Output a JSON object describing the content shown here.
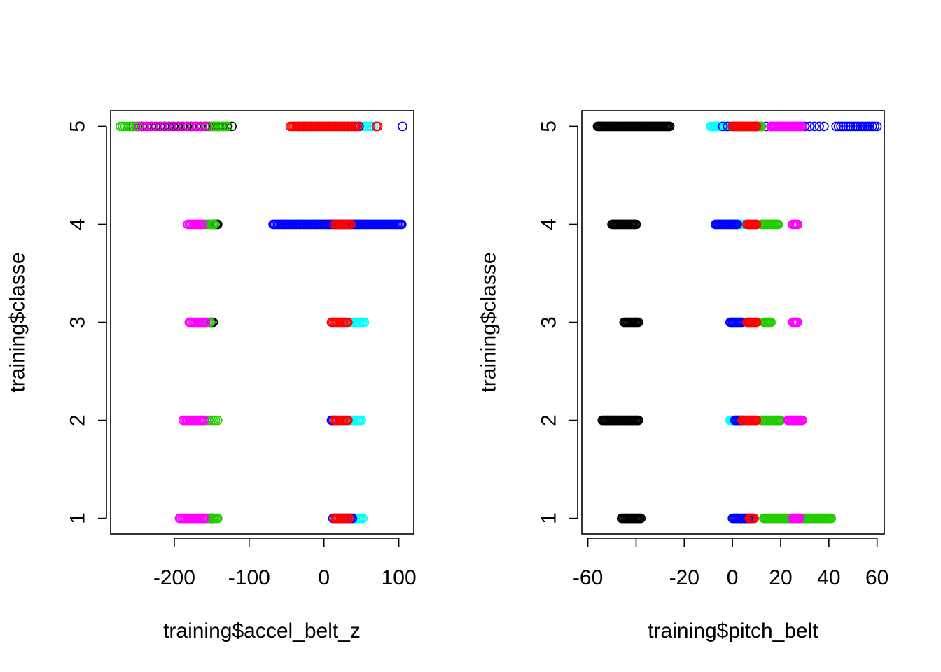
{
  "chart_data": [
    {
      "type": "scatter",
      "xlabel": "training$accel_belt_z",
      "ylabel": "training$classe",
      "xlim": [
        -285,
        120
      ],
      "ylim": [
        0.84,
        5.16
      ],
      "xticks": [
        -200,
        -100,
        0,
        100
      ],
      "xtick_labels": [
        "-200",
        "-100",
        "0",
        "100"
      ],
      "yticks": [
        1,
        2,
        3,
        4,
        5
      ],
      "ytick_labels": [
        "1",
        "2",
        "3",
        "4",
        "5"
      ],
      "grid": false,
      "point_style": "open-circle",
      "series": [
        {
          "color": "#000000",
          "ranges": [
            {
              "y": 5,
              "x0": -255,
              "x1": -122,
              "step": 6
            },
            {
              "y": 4,
              "x0": -148,
              "x1": -142,
              "step": 2
            },
            {
              "y": 3,
              "x0": -152,
              "x1": -148,
              "step": 2
            },
            {
              "y": 1,
              "x0": -152,
              "x1": -148,
              "step": 2
            }
          ]
        },
        {
          "color": "#22cc00",
          "ranges": [
            {
              "y": 5,
              "x0": -272,
              "x1": -247,
              "step": 3
            },
            {
              "y": 5,
              "x0": -155,
              "x1": -128,
              "step": 3
            },
            {
              "y": 4,
              "x0": -160,
              "x1": -146,
              "step": 2
            },
            {
              "y": 3,
              "x0": -162,
              "x1": -151,
              "step": 2
            },
            {
              "y": 2,
              "x0": -163,
              "x1": -140,
              "step": 3
            },
            {
              "y": 1,
              "x0": -162,
              "x1": -142,
              "step": 2
            }
          ]
        },
        {
          "color": "#ff00ff",
          "ranges": [
            {
              "y": 5,
              "x0": -247,
              "x1": -152,
              "step": 6
            },
            {
              "y": 4,
              "x0": -182,
              "x1": -162,
              "step": 2
            },
            {
              "y": 3,
              "x0": -180,
              "x1": -158,
              "step": 2
            },
            {
              "y": 2,
              "x0": -188,
              "x1": -160,
              "step": 2
            },
            {
              "y": 1,
              "x0": -193,
              "x1": -158,
              "step": 2
            }
          ]
        },
        {
          "color": "#00ffff",
          "ranges": [
            {
              "y": 5,
              "x0": 42,
              "x1": 68,
              "step": 3
            },
            {
              "y": 4,
              "x0": 30,
              "x1": 52,
              "step": 2
            },
            {
              "y": 3,
              "x0": 32,
              "x1": 54,
              "step": 2
            },
            {
              "y": 2,
              "x0": 32,
              "x1": 50,
              "step": 2
            },
            {
              "y": 1,
              "x0": 32,
              "x1": 52,
              "step": 2
            }
          ]
        },
        {
          "color": "#0000ff",
          "ranges": [
            {
              "y": 5,
              "x0": -33,
              "x1": 50,
              "step": 5
            },
            {
              "y": 5,
              "x0": 70,
              "x1": 105,
              "step": 35
            },
            {
              "y": 4,
              "x0": -68,
              "x1": 105,
              "step": 2
            },
            {
              "y": 2,
              "x0": 10,
              "x1": 16,
              "step": 2
            },
            {
              "y": 1,
              "x0": 12,
              "x1": 38,
              "step": 2
            }
          ]
        },
        {
          "color": "#ff0000",
          "ranges": [
            {
              "y": 5,
              "x0": -45,
              "x1": 45,
              "step": 2
            },
            {
              "y": 5,
              "x0": 70,
              "x1": 72,
              "step": 2
            },
            {
              "y": 4,
              "x0": 14,
              "x1": 36,
              "step": 2
            },
            {
              "y": 3,
              "x0": 10,
              "x1": 32,
              "step": 2
            },
            {
              "y": 2,
              "x0": 14,
              "x1": 32,
              "step": 2
            },
            {
              "y": 1,
              "x0": 14,
              "x1": 34,
              "step": 2
            }
          ]
        }
      ]
    },
    {
      "type": "scatter",
      "xlabel": "training$pitch_belt",
      "ylabel": "training$classe",
      "xlim": [
        -62.5,
        63
      ],
      "ylim": [
        0.84,
        5.16
      ],
      "xticks": [
        -60,
        -40,
        -20,
        0,
        20,
        40,
        60
      ],
      "xtick_labels": [
        "-60",
        "",
        "-20",
        "0",
        "20",
        "40",
        "60"
      ],
      "yticks": [
        1,
        2,
        3,
        4,
        5
      ],
      "ytick_labels": [
        "1",
        "2",
        "3",
        "4",
        "5"
      ],
      "grid": false,
      "point_style": "open-circle",
      "series": [
        {
          "color": "#000000",
          "ranges": [
            {
              "y": 5,
              "x0": -56,
              "x1": -26,
              "step": 0.5
            },
            {
              "y": 4,
              "x0": -50,
              "x1": -40,
              "step": 0.5
            },
            {
              "y": 3,
              "x0": -45,
              "x1": -39,
              "step": 0.5
            },
            {
              "y": 2,
              "x0": -54,
              "x1": -39,
              "step": 0.5
            },
            {
              "y": 1,
              "x0": -46,
              "x1": -38,
              "step": 0.5
            }
          ]
        },
        {
          "color": "#00ffff",
          "ranges": [
            {
              "y": 5,
              "x0": -9,
              "x1": 8,
              "step": 0.5
            },
            {
              "y": 4,
              "x0": 2,
              "x1": 5,
              "step": 0.5
            },
            {
              "y": 2,
              "x0": -1,
              "x1": 2,
              "step": 0.5
            }
          ]
        },
        {
          "color": "#0000ff",
          "ranges": [
            {
              "y": 5,
              "x0": -4,
              "x1": 16,
              "step": 2
            },
            {
              "y": 5,
              "x0": 30,
              "x1": 38,
              "step": 2
            },
            {
              "y": 5,
              "x0": 43,
              "x1": 60,
              "step": 1
            },
            {
              "y": 4,
              "x0": -7,
              "x1": 2,
              "step": 0.5
            },
            {
              "y": 3,
              "x0": -1,
              "x1": 4,
              "step": 0.5
            },
            {
              "y": 2,
              "x0": 1,
              "x1": 4,
              "step": 0.5
            },
            {
              "y": 1,
              "x0": 0,
              "x1": 8,
              "step": 0.5
            }
          ]
        },
        {
          "color": "#22cc00",
          "ranges": [
            {
              "y": 5,
              "x0": 8,
              "x1": 12,
              "step": 0.5
            },
            {
              "y": 4,
              "x0": 12,
              "x1": 19,
              "step": 0.5
            },
            {
              "y": 4,
              "x0": 9,
              "x1": 10,
              "step": 1
            },
            {
              "y": 3,
              "x0": 13,
              "x1": 16,
              "step": 0.5
            },
            {
              "y": 3,
              "x0": 7,
              "x1": 8,
              "step": 1
            },
            {
              "y": 2,
              "x0": 12,
              "x1": 20,
              "step": 0.5
            },
            {
              "y": 1,
              "x0": 13,
              "x1": 41,
              "step": 0.5
            }
          ]
        },
        {
          "color": "#ff0000",
          "ranges": [
            {
              "y": 5,
              "x0": 0,
              "x1": 10,
              "step": 0.5
            },
            {
              "y": 4,
              "x0": 6,
              "x1": 10,
              "step": 0.5
            },
            {
              "y": 3,
              "x0": 6,
              "x1": 10,
              "step": 0.5
            },
            {
              "y": 2,
              "x0": 4,
              "x1": 10,
              "step": 0.5
            },
            {
              "y": 1,
              "x0": 7,
              "x1": 9,
              "step": 0.5
            }
          ]
        },
        {
          "color": "#ff00ff",
          "ranges": [
            {
              "y": 5,
              "x0": 16,
              "x1": 29,
              "step": 0.5
            },
            {
              "y": 4,
              "x0": 25,
              "x1": 27,
              "step": 0.5
            },
            {
              "y": 3,
              "x0": 25,
              "x1": 27,
              "step": 0.5
            },
            {
              "y": 2,
              "x0": 23,
              "x1": 29,
              "step": 0.5
            },
            {
              "y": 1,
              "x0": 25,
              "x1": 28,
              "step": 0.5
            }
          ]
        }
      ]
    }
  ]
}
